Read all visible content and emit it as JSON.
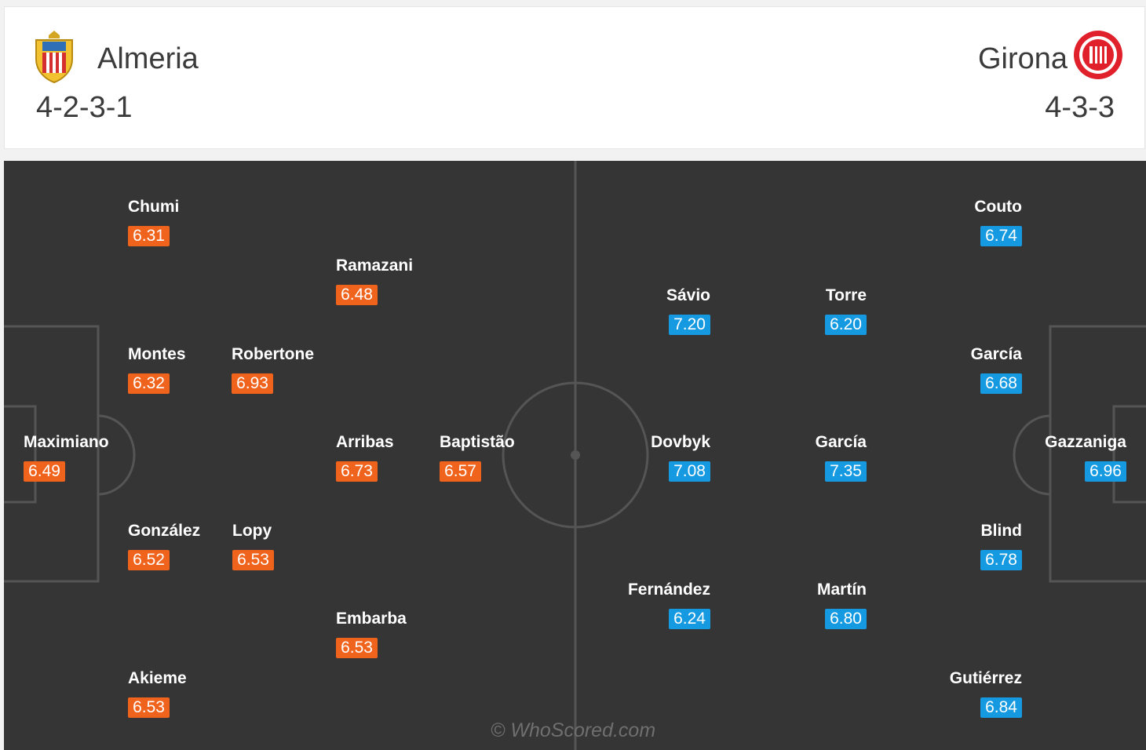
{
  "header": {
    "home": {
      "name": "Almeria",
      "formation": "4-2-3-1",
      "crest_icon": "almeria-crest-icon"
    },
    "away": {
      "name": "Girona",
      "formation": "4-3-3",
      "crest_icon": "girona-crest-icon"
    }
  },
  "colors": {
    "home_rating": "#f0631c",
    "away_rating": "#1599e0",
    "pitch": "#353535",
    "lines": "#555555"
  },
  "home_players": [
    {
      "name": "Chumi",
      "rating": "6.31"
    },
    {
      "name": "Ramazani",
      "rating": "6.48"
    },
    {
      "name": "Montes",
      "rating": "6.32"
    },
    {
      "name": "Robertone",
      "rating": "6.93"
    },
    {
      "name": "Maximiano",
      "rating": "6.49"
    },
    {
      "name": "Arribas",
      "rating": "6.73"
    },
    {
      "name": "Baptistão",
      "rating": "6.57"
    },
    {
      "name": "González",
      "rating": "6.52"
    },
    {
      "name": "Lopy",
      "rating": "6.53"
    },
    {
      "name": "Embarba",
      "rating": "6.53"
    },
    {
      "name": "Akieme",
      "rating": "6.53"
    }
  ],
  "away_players": [
    {
      "name": "Couto",
      "rating": "6.74"
    },
    {
      "name": "Sávio",
      "rating": "7.20"
    },
    {
      "name": "Torre",
      "rating": "6.20"
    },
    {
      "name": "García",
      "rating": "6.68"
    },
    {
      "name": "Dovbyk",
      "rating": "7.08"
    },
    {
      "name": "García",
      "rating": "7.35"
    },
    {
      "name": "Gazzaniga",
      "rating": "6.96"
    },
    {
      "name": "Blind",
      "rating": "6.78"
    },
    {
      "name": "Fernández",
      "rating": "6.24"
    },
    {
      "name": "Martín",
      "rating": "6.80"
    },
    {
      "name": "Gutiérrez",
      "rating": "6.84"
    }
  ],
  "watermark": "© WhoScored.com"
}
